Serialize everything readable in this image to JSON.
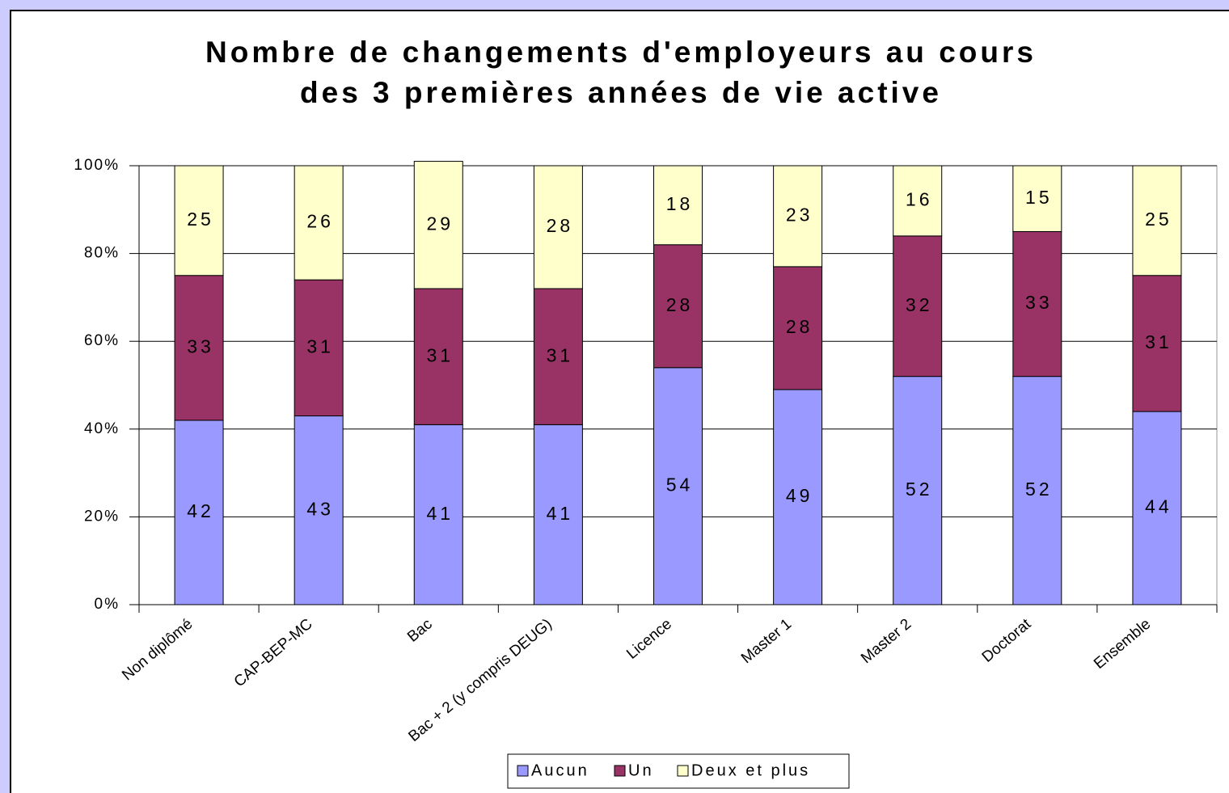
{
  "chart_data": {
    "type": "stacked_bar",
    "title": [
      "Nombre de changements d'employeurs au cours",
      "des 3 premières années de vie active"
    ],
    "categories": [
      "Non diplômé",
      "CAP-BEP-MC",
      "Bac",
      "Bac + 2 (y compris DEUG)",
      "Licence",
      "Master 1",
      "Master 2",
      "Doctorat",
      "Ensemble"
    ],
    "series": [
      {
        "name": "Aucun",
        "color": "#9999ff",
        "values": [
          42,
          43,
          41,
          41,
          54,
          49,
          52,
          52,
          44
        ]
      },
      {
        "name": "Un",
        "color": "#993366",
        "values": [
          33,
          31,
          31,
          31,
          28,
          28,
          32,
          33,
          31
        ]
      },
      {
        "name": "Deux et plus",
        "color": "#ffffcc",
        "values": [
          25,
          26,
          29,
          28,
          18,
          23,
          16,
          15,
          25
        ]
      }
    ],
    "ylim": [
      0,
      100
    ],
    "yticks": [
      {
        "value": 0,
        "label": "0%"
      },
      {
        "value": 20,
        "label": "20%"
      },
      {
        "value": 40,
        "label": "40%"
      },
      {
        "value": 60,
        "label": "60%"
      },
      {
        "value": 80,
        "label": "80%"
      },
      {
        "value": 100,
        "label": "100%"
      }
    ],
    "grid": true,
    "legend": "bottom"
  }
}
